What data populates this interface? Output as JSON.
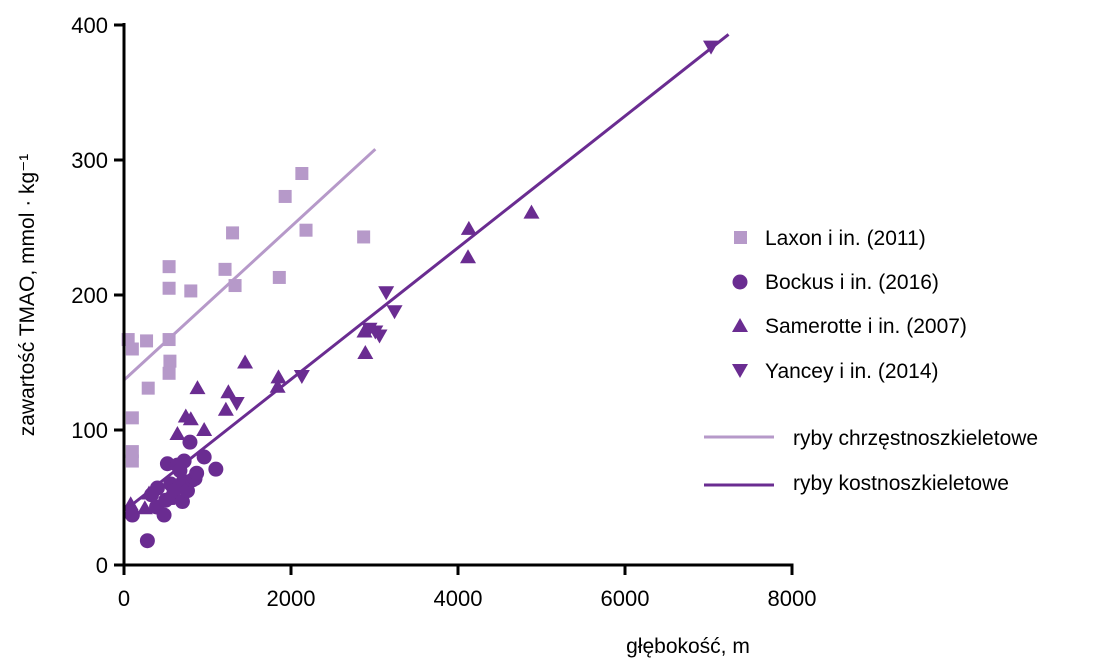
{
  "chart_data": {
    "type": "scatter",
    "xlabel": "głębokość, m",
    "ylabel": "zawartość TMAO, mmol · kg⁻¹",
    "xlim": [
      0,
      8000
    ],
    "ylim": [
      0,
      400
    ],
    "xticks": [
      "0",
      "2000",
      "4000",
      "6000",
      "8000"
    ],
    "yticks": [
      "0",
      "100",
      "200",
      "300",
      "400"
    ],
    "grid": false,
    "legend_position": "right",
    "colors": {
      "light": "#b699c9",
      "dark": "#6a2c91"
    },
    "series": [
      {
        "name": "Laxon i in. (2011)",
        "marker": "square",
        "color": "#b699c9",
        "points": [
          [
            50,
            167
          ],
          [
            100,
            160
          ],
          [
            100,
            109
          ],
          [
            100,
            84
          ],
          [
            100,
            77
          ],
          [
            270,
            166
          ],
          [
            290,
            131
          ],
          [
            540,
            167
          ],
          [
            540,
            221
          ],
          [
            540,
            205
          ],
          [
            550,
            151
          ],
          [
            540,
            142
          ],
          [
            800,
            203
          ],
          [
            1210,
            219
          ],
          [
            1300,
            246
          ],
          [
            1330,
            207
          ],
          [
            1860,
            213
          ],
          [
            1930,
            273
          ],
          [
            2130,
            290
          ],
          [
            2180,
            248
          ],
          [
            2870,
            243
          ]
        ]
      },
      {
        "name": "Bockus i in. (2016)",
        "marker": "circle",
        "color": "#6a2c91",
        "points": [
          [
            100,
            37
          ],
          [
            280,
            18
          ],
          [
            330,
            52
          ],
          [
            390,
            43
          ],
          [
            400,
            57
          ],
          [
            480,
            37
          ],
          [
            500,
            48
          ],
          [
            520,
            75
          ],
          [
            560,
            60
          ],
          [
            570,
            50
          ],
          [
            600,
            55
          ],
          [
            640,
            74
          ],
          [
            670,
            70
          ],
          [
            700,
            47
          ],
          [
            710,
            62
          ],
          [
            720,
            77
          ],
          [
            760,
            55
          ],
          [
            790,
            91
          ],
          [
            820,
            63
          ],
          [
            850,
            64
          ],
          [
            870,
            68
          ],
          [
            960,
            80
          ],
          [
            1100,
            71
          ]
        ]
      },
      {
        "name": "Samerotte i in. (2007)",
        "marker": "triangle-up",
        "color": "#6a2c91",
        "points": [
          [
            80,
            45
          ],
          [
            250,
            42
          ],
          [
            300,
            53
          ],
          [
            520,
            49
          ],
          [
            640,
            97
          ],
          [
            740,
            110
          ],
          [
            800,
            108
          ],
          [
            880,
            131
          ],
          [
            960,
            100
          ],
          [
            1220,
            115
          ],
          [
            1250,
            128
          ],
          [
            1450,
            150
          ],
          [
            1850,
            139
          ],
          [
            1840,
            132
          ],
          [
            2880,
            173
          ],
          [
            2890,
            157
          ],
          [
            4130,
            249
          ],
          [
            4120,
            228
          ],
          [
            4880,
            261
          ]
        ]
      },
      {
        "name": "Yancey i in. (2014)",
        "marker": "triangle-down",
        "color": "#6a2c91",
        "points": [
          [
            1350,
            120
          ],
          [
            2130,
            140
          ],
          [
            2940,
            175
          ],
          [
            3010,
            173
          ],
          [
            3060,
            170
          ],
          [
            3140,
            202
          ],
          [
            3240,
            188
          ],
          [
            7030,
            384
          ]
        ]
      },
      {
        "name": "ryby chrzęstnoszkieletowe",
        "type": "line",
        "color": "#b699c9",
        "x": [
          0,
          3010
        ],
        "y": [
          137,
          308
        ]
      },
      {
        "name": "ryby kostnoszkieletowe",
        "type": "line",
        "color": "#6a2c91",
        "x": [
          0,
          7240
        ],
        "y": [
          40,
          393
        ]
      }
    ]
  }
}
